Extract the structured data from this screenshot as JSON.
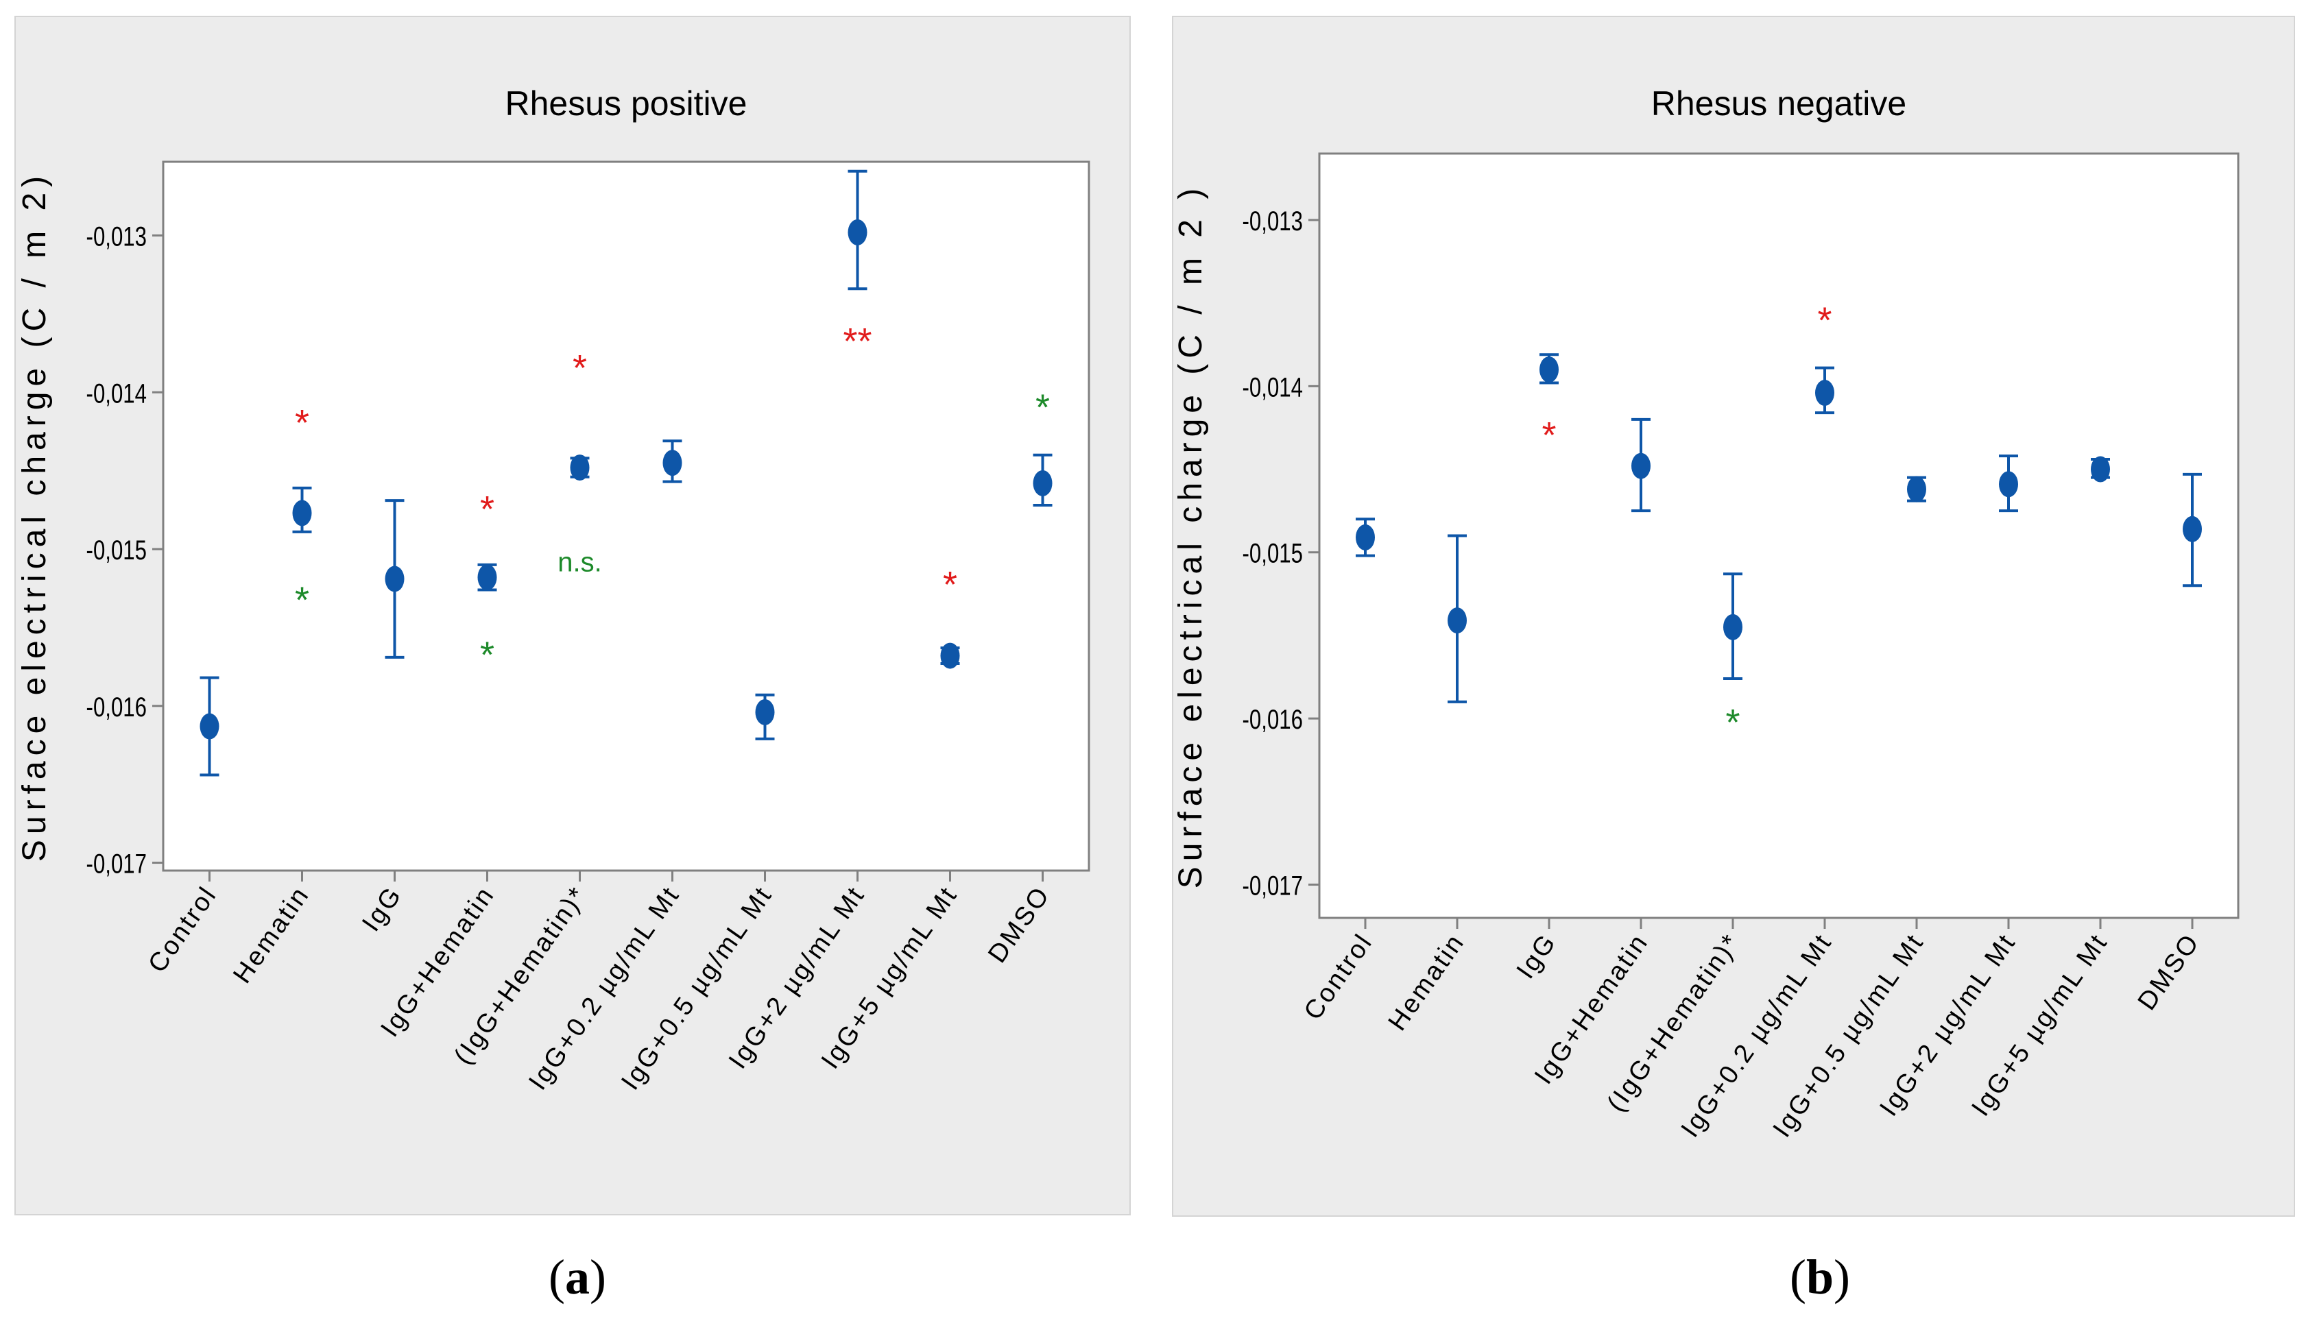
{
  "colors": {
    "panel_bg": "#ececec",
    "plot_bg": "#ffffff",
    "axis": "#808080",
    "marker": "#0e56a8",
    "sig_red": "#e11b1b",
    "sig_green": "#1d8a2a",
    "text": "#000000"
  },
  "chart_data": [
    {
      "type": "scatter",
      "subtype": "interval-plot",
      "panel_label": {
        "open": "(",
        "letter": "a",
        "close": ")"
      },
      "title": "Rhesus positive",
      "ylabel": "Surface electrical charge  (C / m 2)",
      "ylim": [
        -0.01705,
        -0.01253
      ],
      "yticks": [
        -0.013,
        -0.014,
        -0.015,
        -0.016,
        -0.017
      ],
      "ytick_labels": [
        "-0,013",
        "-0,014",
        "-0,015",
        "-0,016",
        "-0,017"
      ],
      "categories": [
        "Control",
        "Hematin",
        "IgG",
        "IgG+Hematin",
        "(IgG+Hematin)*",
        "IgG+0.2 µg/mL Mt",
        "IgG+0.5 µg/mL Mt",
        "IgG+2 µg/mL Mt",
        "IgG+5 µg/mL Mt",
        "DMSO"
      ],
      "series": [
        {
          "name": "Surface electrical charge",
          "mean": [
            -0.01613,
            -0.01477,
            -0.01519,
            -0.01518,
            -0.01448,
            -0.01445,
            -0.01604,
            -0.01298,
            -0.01568,
            -0.01458
          ],
          "lower": [
            -0.01644,
            -0.01489,
            -0.01569,
            -0.01526,
            -0.01454,
            -0.01457,
            -0.01621,
            -0.01334,
            -0.01573,
            -0.01472
          ],
          "upper": [
            -0.01582,
            -0.01461,
            -0.01469,
            -0.0151,
            -0.01442,
            -0.01431,
            -0.01593,
            -0.01259,
            -0.01563,
            -0.0144
          ]
        }
      ],
      "annotations": [
        {
          "category": "Hematin",
          "text": "*",
          "color": "red",
          "y": -0.01417
        },
        {
          "category": "Hematin",
          "text": "*",
          "color": "green",
          "y": -0.0153
        },
        {
          "category": "IgG+Hematin",
          "text": "*",
          "color": "red",
          "y": -0.01472
        },
        {
          "category": "IgG+Hematin",
          "text": "*",
          "color": "green",
          "y": -0.01565
        },
        {
          "category": "(IgG+Hematin)*",
          "text": "*",
          "color": "red",
          "y": -0.01382
        },
        {
          "category": "(IgG+Hematin)*",
          "text": "n.s.",
          "color": "green",
          "y": -0.01508
        },
        {
          "category": "IgG+2 µg/mL Mt",
          "text": "**",
          "color": "red",
          "y": -0.01365
        },
        {
          "category": "IgG+5 µg/mL Mt",
          "text": "*",
          "color": "red",
          "y": -0.0152
        },
        {
          "category": "DMSO",
          "text": "*",
          "color": "green",
          "y": -0.01407
        }
      ]
    },
    {
      "type": "scatter",
      "subtype": "interval-plot",
      "panel_label": {
        "open": "(",
        "letter": "b",
        "close": ")"
      },
      "title": "Rhesus negative",
      "ylabel": "Surface electrical charge  (C / m 2 )",
      "ylim": [
        -0.0172,
        -0.0126
      ],
      "yticks": [
        -0.013,
        -0.014,
        -0.015,
        -0.016,
        -0.017
      ],
      "ytick_labels": [
        "-0,013",
        "-0,014",
        "-0,015",
        "-0,016",
        "-0,017"
      ],
      "categories": [
        "Control",
        "Hematin",
        "IgG",
        "IgG+Hematin",
        "(IgG+Hematin)*",
        "IgG+0.2 µg/mL Mt",
        "IgG+0.5 µg/mL Mt",
        "IgG+2 µg/mL Mt",
        "IgG+5 µg/mL Mt",
        "DMSO"
      ],
      "series": [
        {
          "name": "Surface electrical charge",
          "mean": [
            -0.01491,
            -0.01541,
            -0.0139,
            -0.01448,
            -0.01545,
            -0.01404,
            -0.01462,
            -0.01459,
            -0.0145,
            -0.01486
          ],
          "lower": [
            -0.01502,
            -0.0159,
            -0.01398,
            -0.01475,
            -0.01576,
            -0.01416,
            -0.01469,
            -0.01475,
            -0.01455,
            -0.0152
          ],
          "upper": [
            -0.0148,
            -0.0149,
            -0.01381,
            -0.0142,
            -0.01513,
            -0.01389,
            -0.01455,
            -0.01442,
            -0.01444,
            -0.01453
          ]
        }
      ],
      "annotations": [
        {
          "category": "IgG",
          "text": "*",
          "color": "red",
          "y": -0.01427
        },
        {
          "category": "(IgG+Hematin)*",
          "text": "*",
          "color": "green",
          "y": -0.016
        },
        {
          "category": "IgG+0.2 µg/mL Mt",
          "text": "*",
          "color": "red",
          "y": -0.01358
        }
      ]
    }
  ]
}
